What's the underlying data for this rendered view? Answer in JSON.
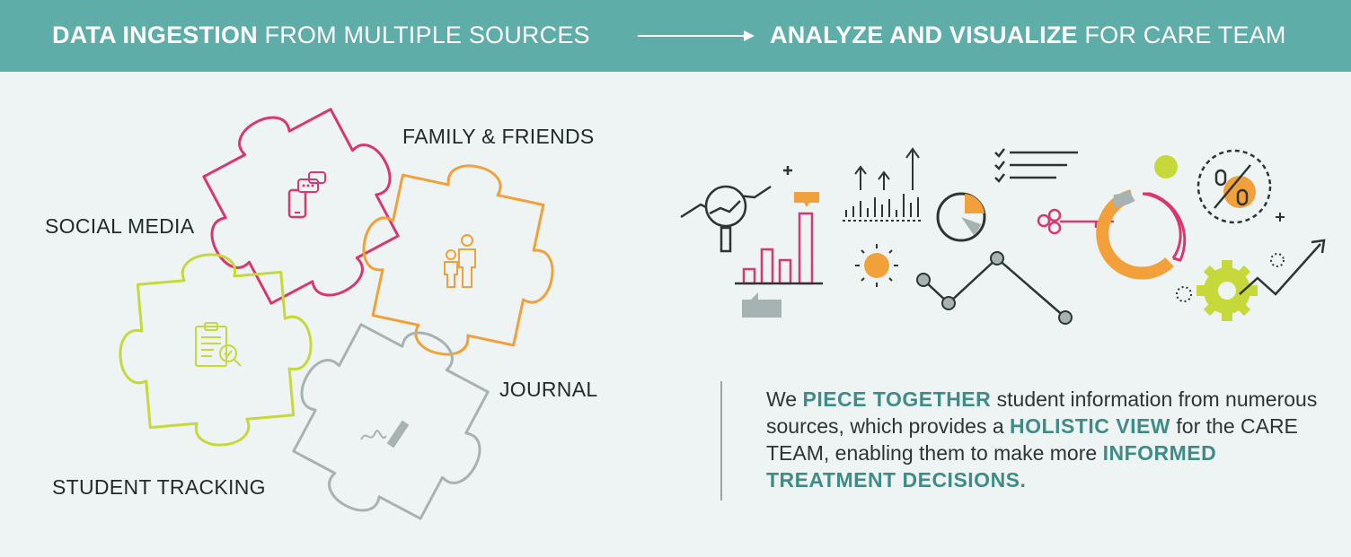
{
  "banner": {
    "left_bold": "DATA INGESTION",
    "left_rest": " FROM MULTIPLE SOURCES",
    "right_bold": "ANALYZE AND VISUALIZE",
    "right_rest": " FOR CARE TEAM"
  },
  "puzzle": {
    "pieces": [
      {
        "label": "SOCIAL MEDIA",
        "color": "#d9386f",
        "icon": "chat-phone-icon"
      },
      {
        "label": "FAMILY & FRIENDS",
        "color": "#f2a03a",
        "icon": "family-icon"
      },
      {
        "label": "STUDENT TRACKING",
        "color": "#c6d83a",
        "icon": "clipboard-search-icon"
      },
      {
        "label": "JOURNAL",
        "color": "#a7b3b2",
        "icon": "pen-signature-icon"
      }
    ]
  },
  "summary": {
    "t1": "We ",
    "h1": "PIECE TOGETHER",
    "t2": " student information from numerous sources, which provides a ",
    "h2": "HOLISTIC VIEW",
    "t3": " for the CARE TEAM, enabling them to make more ",
    "h3": "INFORMED TREATMENT DECISIONS",
    "t4": "."
  },
  "colors": {
    "banner": "#5fada8",
    "teal_text": "#3f8c87",
    "pink": "#d9386f",
    "orange": "#f2a03a",
    "lime": "#c6d83a",
    "gray": "#a7b3b2"
  }
}
